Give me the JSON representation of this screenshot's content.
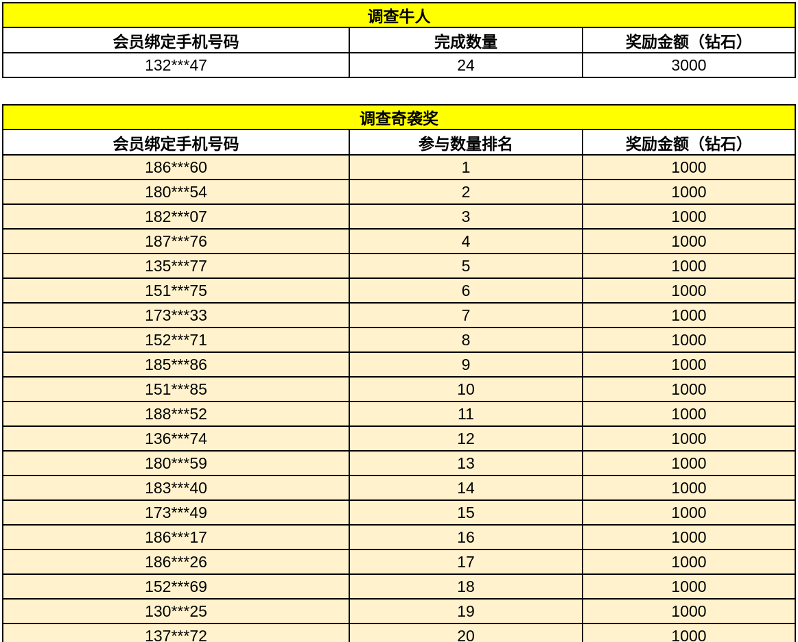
{
  "colors": {
    "title_bg": "#FFFF00",
    "header_bg": "#FFFFFF",
    "row_bg_table1": "#FFFFFF",
    "row_bg_table2": "#FFF2CC",
    "border": "#000000",
    "text": "#000000"
  },
  "chart_data": [
    {
      "type": "table",
      "title": "调查牛人",
      "columns": [
        "会员绑定手机号码",
        "完成数量",
        "奖励金额（钻石）"
      ],
      "rows": [
        [
          "132***47",
          "24",
          "3000"
        ]
      ]
    },
    {
      "type": "table",
      "title": "调查奇袭奖",
      "columns": [
        "会员绑定手机号码",
        "参与数量排名",
        "奖励金额（钻石）"
      ],
      "rows": [
        [
          "186***60",
          "1",
          "1000"
        ],
        [
          "180***54",
          "2",
          "1000"
        ],
        [
          "182***07",
          "3",
          "1000"
        ],
        [
          "187***76",
          "4",
          "1000"
        ],
        [
          "135***77",
          "5",
          "1000"
        ],
        [
          "151***75",
          "6",
          "1000"
        ],
        [
          "173***33",
          "7",
          "1000"
        ],
        [
          "152***71",
          "8",
          "1000"
        ],
        [
          "185***86",
          "9",
          "1000"
        ],
        [
          "151***85",
          "10",
          "1000"
        ],
        [
          "188***52",
          "11",
          "1000"
        ],
        [
          "136***74",
          "12",
          "1000"
        ],
        [
          "180***59",
          "13",
          "1000"
        ],
        [
          "183***40",
          "14",
          "1000"
        ],
        [
          "173***49",
          "15",
          "1000"
        ],
        [
          "186***17",
          "16",
          "1000"
        ],
        [
          "186***26",
          "17",
          "1000"
        ],
        [
          "152***69",
          "18",
          "1000"
        ],
        [
          "130***25",
          "19",
          "1000"
        ],
        [
          "137***72",
          "20",
          "1000"
        ]
      ]
    }
  ]
}
